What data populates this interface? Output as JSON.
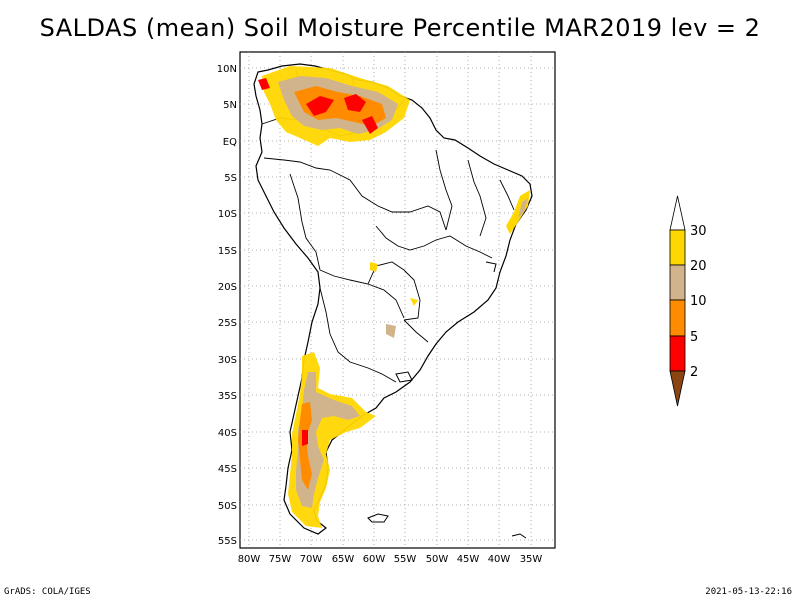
{
  "title": "SALDAS (mean) Soil Moisture Percentile MAR2019 lev = 2",
  "footer": {
    "left": "GrADS: COLA/IGES",
    "right": "2021-05-13-22:16"
  },
  "lat_labels": [
    "10N",
    "5N",
    "EQ",
    "5S",
    "10S",
    "15S",
    "20S",
    "25S",
    "30S",
    "35S",
    "40S",
    "45S",
    "50S",
    "55S"
  ],
  "lon_labels": [
    "80W",
    "75W",
    "70W",
    "65W",
    "60W",
    "55W",
    "50W",
    "45W",
    "40W",
    "35W"
  ],
  "colorbar": {
    "labels": [
      "30",
      "20",
      "10",
      "5",
      "2"
    ],
    "colors": {
      "above": "#ffffff",
      "c20_30": "#ffd700",
      "c10_20": "#d2b48c",
      "c5_10": "#ff8c00",
      "c2_5": "#ff0000",
      "below": "#8b4513"
    }
  }
}
